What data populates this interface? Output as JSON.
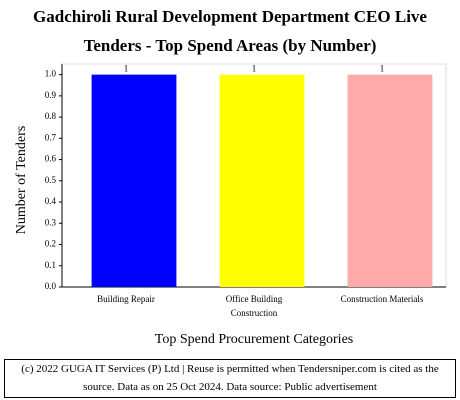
{
  "chart_data": {
    "type": "bar",
    "title": "Gadchiroli Rural Development Department CEO Live Tenders - Top Spend Areas (by Number)",
    "x_label": "Top Spend Procurement Categories",
    "y_label": "Number of Tenders",
    "categories": [
      "Building Repair",
      "Office Building Construction",
      "Construction Materials"
    ],
    "values": [
      1,
      1,
      1
    ],
    "colors": [
      "#0000ff",
      "#ffff00",
      "#ffaaaa"
    ],
    "ylim": [
      0,
      1.05
    ],
    "yticks": [
      {
        "value": 0,
        "label": "0.0"
      },
      0.1,
      0.2,
      0.3,
      0.4,
      0.5,
      0.6,
      0.7,
      0.8,
      0.9,
      {
        "value": 1,
        "label": "1.0"
      }
    ],
    "footer": "(c) 2022 GUGA IT Services (P) Ltd | Reuse is permitted when Tendersniper.com is cited as the source. Data as on 25 Oct 2024. Data source: Public advertisement"
  }
}
